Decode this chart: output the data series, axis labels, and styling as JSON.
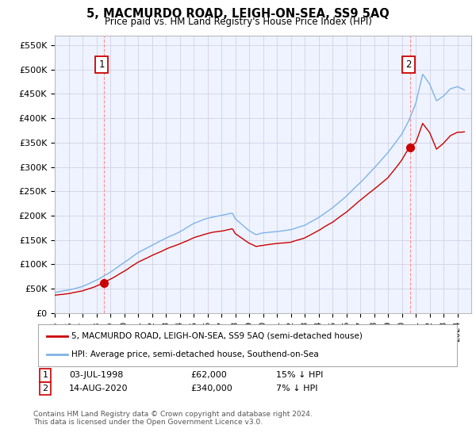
{
  "title": "5, MACMURDO ROAD, LEIGH-ON-SEA, SS9 5AQ",
  "subtitle": "Price paid vs. HM Land Registry's House Price Index (HPI)",
  "ylabel_ticks": [
    "£0",
    "£50K",
    "£100K",
    "£150K",
    "£200K",
    "£250K",
    "£300K",
    "£350K",
    "£400K",
    "£450K",
    "£500K",
    "£550K"
  ],
  "ytick_values": [
    0,
    50000,
    100000,
    150000,
    200000,
    250000,
    300000,
    350000,
    400000,
    450000,
    500000,
    550000
  ],
  "ylim": [
    0,
    570000
  ],
  "sale1_year": 1998.54,
  "sale1_price": 62000,
  "sale2_year": 2020.62,
  "sale2_price": 340000,
  "hpi_color": "#7EB3E8",
  "price_color": "#CC0000",
  "dashed_color": "#FF8888",
  "bg_color": "#F0F4FF",
  "plot_bg": "#EEF3FF",
  "grid_color": "#CCCCDD",
  "legend_label_price": "5, MACMURDO ROAD, LEIGH-ON-SEA, SS9 5AQ (semi-detached house)",
  "legend_label_hpi": "HPI: Average price, semi-detached house, Southend-on-Sea",
  "footnote": "Contains HM Land Registry data © Crown copyright and database right 2024.\nThis data is licensed under the Open Government Licence v3.0.",
  "xmin": 1995,
  "xmax": 2025
}
